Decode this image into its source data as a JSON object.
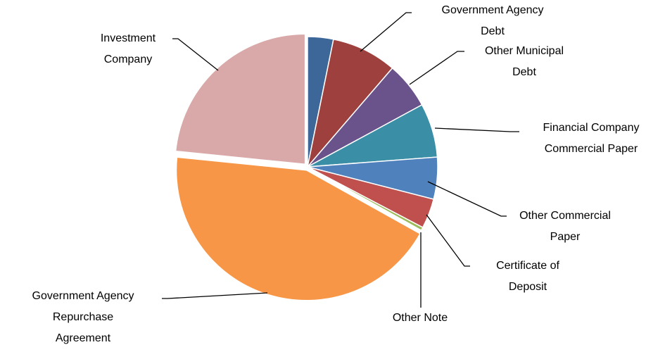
{
  "chart_data": {
    "type": "pie",
    "categories": [
      null,
      "Government Agency Debt",
      "Other Municipal Debt",
      "Financial Company Commercial Paper",
      "Other Commercial Paper",
      "Certificate of Deposit",
      "Other Note",
      "Government Agency Repurchase Agreement",
      "Investment Company"
    ],
    "values": [
      3.2,
      8.1,
      5.8,
      6.7,
      5.2,
      3.7,
      0.4,
      43.5,
      23.4
    ],
    "colors": [
      "#3d6699",
      "#9e413e",
      "#6a528a",
      "#3a8ea5",
      "#4f81bd",
      "#c0504d",
      "#9bbb59",
      "#f79646",
      "#d9a9a9"
    ]
  }
}
